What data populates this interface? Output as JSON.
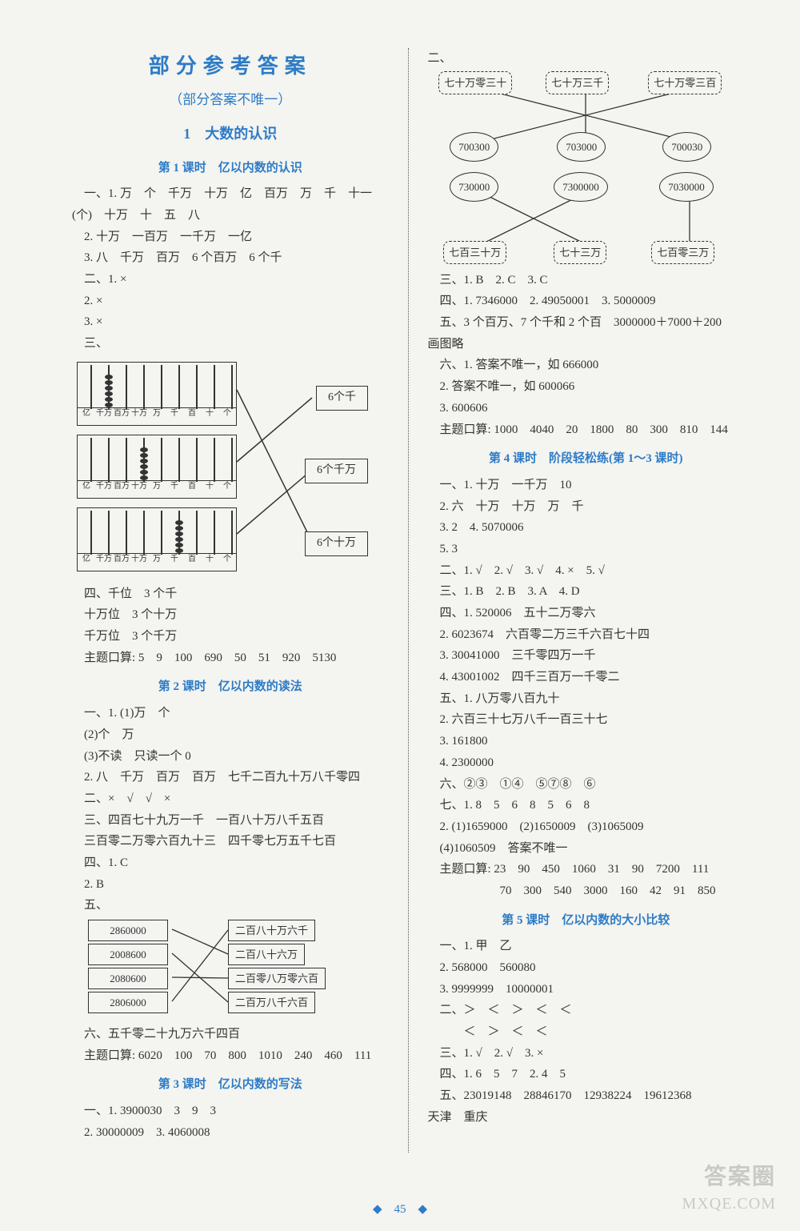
{
  "colors": {
    "blue": "#2d7cc7",
    "text": "#333333",
    "bg": "#f4f4f0"
  },
  "header": {
    "main": "部分参考答案",
    "sub": "（部分答案不唯一）",
    "unit": "1　大数的认识"
  },
  "l1": {
    "title": "第 1 课时　亿以内数的认识",
    "p1": "一、1. 万　个　千万　十万　亿　百万　万　千　十一(个)　十万　十　五　八",
    "p2": "2. 十万　一百万　一千万　一亿",
    "p3": "3. 八　千万　百万　6 个百万　6 个千",
    "p4": "二、1. ×",
    "p5": "2. ×",
    "p6": "3. ×",
    "p7": "三、",
    "abacus_cols": [
      "亿",
      "千万",
      "百万",
      "十万",
      "万",
      "千",
      "百",
      "十",
      "个"
    ],
    "ans": [
      "6个千",
      "6个千万",
      "6个十万"
    ],
    "p8": "四、千位　3 个千",
    "p9": "十万位　3 个十万",
    "p10": "千万位　3 个千万",
    "p11": "主题口算: 5　9　100　690　50　51　920　5130"
  },
  "l2": {
    "title": "第 2 课时　亿以内数的读法",
    "p1": "一、1. (1)万　个",
    "p2": "(2)个　万",
    "p3": "(3)不读　只读一个 0",
    "p4": "2. 八　千万　百万　百万　七千二百九十万八千零四",
    "p5": "二、×　√　√　×",
    "p6": "三、四百七十九万一千　一百八十万八千五百",
    "p7": "三百零二万零六百九十三　四千零七万五千七百",
    "p8": "四、1. C",
    "p9": "2. B",
    "p10": "五、",
    "left": [
      "2860000",
      "2008600",
      "2080600",
      "2806000"
    ],
    "right": [
      "二百八十万六千",
      "二百八十六万",
      "二百零八万零六百",
      "二百万八千六百"
    ],
    "p11": "六、五千零二十九万六千四百",
    "p12": "主题口算: 6020　100　70　800　1010　240　460　111"
  },
  "l3": {
    "title": "第 3 课时　亿以内数的写法",
    "p1": "一、1. 3900030　3　9　3",
    "p2": "2. 30000009　3. 4060008",
    "p3": "二、",
    "top_boxes": [
      "七十万零三十",
      "七十万三千",
      "七十万零三百"
    ],
    "top_clouds": [
      "700300",
      "703000",
      "700030"
    ],
    "bot_clouds": [
      "730000",
      "7300000",
      "7030000"
    ],
    "bot_boxes": [
      "七百三十万",
      "七十三万",
      "七百零三万"
    ],
    "p4": "三、1. B　2. C　3. C",
    "p5": "四、1. 7346000　2. 49050001　3. 5000009",
    "p6": "五、3 个百万、7 个千和 2 个百　3000000＋7000＋200",
    "p7": "画图略",
    "p8": "六、1. 答案不唯一，如 666000",
    "p9": "2. 答案不唯一，如 600066",
    "p10": "3. 600606",
    "p11": "主题口算: 1000　4040　20　1800　80　300　810　144"
  },
  "l4": {
    "title": "第 4 课时　阶段轻松练(第 1～3 课时)",
    "p1": "一、1. 十万　一千万　10",
    "p2": "2. 六　十万　十万　万　千",
    "p3": "3. 2　4. 5070006",
    "p4": "5. 3",
    "p5": "二、1. √　2. √　3. √　4. ×　5. √",
    "p6": "三、1. B　2. B　3. A　4. D",
    "p7": "四、1. 520006　五十二万零六",
    "p8": "2. 6023674　六百零二万三千六百七十四",
    "p9": "3. 30041000　三千零四万一千",
    "p10": "4. 43001002　四千三百万一千零二",
    "p11": "五、1. 八万零八百九十",
    "p12": "2. 六百三十七万八千一百三十七",
    "p13": "3. 161800",
    "p14": "4. 2300000",
    "p15": "六、②③　①④　⑤⑦⑧　⑥",
    "p16": "七、1. 8　5　6　8　5　6　8",
    "p17": "2. (1)1659000　(2)1650009　(3)1065009",
    "p18": "(4)1060509　答案不唯一",
    "p19": "主题口算: 23　90　450　1060　31　90　7200　111",
    "p20": "　　　　　70　300　540　3000　160　42　91　850"
  },
  "l5": {
    "title": "第 5 课时　亿以内数的大小比较",
    "p1": "一、1. 甲　乙",
    "p2": "2. 568000　560080",
    "p3": "3. 9999999　10000001",
    "p4": "二、＞　＜　＞　＜　＜",
    "p5": "　　＜　＞　＜　＜",
    "p6": "三、1. √　2. √　3. ×",
    "p7": "四、1. 6　5　7　2. 4　5",
    "p8": "五、23019148　28846170　12938224　19612368",
    "p9": "天津　重庆"
  },
  "footer": {
    "page": "45",
    "wm1": "答案圈",
    "wm2": "MXQE.COM"
  }
}
